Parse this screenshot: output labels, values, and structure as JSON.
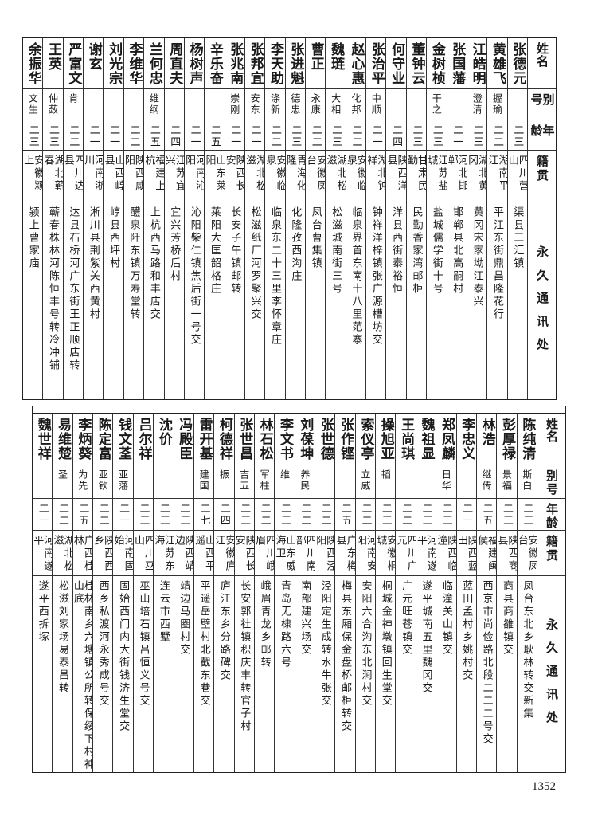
{
  "header": {
    "name": "姓名",
    "alias": "别号",
    "age": "年龄",
    "origin": "籍贯",
    "address": "永久通讯处"
  },
  "top_table": [
    {
      "name": "张德元",
      "alias": "",
      "age": "二三",
      "origin": "四川营山",
      "address": "渠县三汇镇"
    },
    {
      "name": "黄雄飞",
      "alias": "握瑜",
      "age": "二二",
      "origin": "湖南平江",
      "address": "平江东街鼎昌隆花行"
    },
    {
      "name": "江皓明",
      "alias": "澄清",
      "age": "二三",
      "origin": "湖北黄冈",
      "address": "黄冈宋家坳江泰兴"
    },
    {
      "name": "张国藩",
      "alias": "",
      "age": "二一",
      "origin": "河北邯郸",
      "address": "邯郸县北高嗣村"
    },
    {
      "name": "金树桢",
      "alias": "干之",
      "age": "二三",
      "origin": "江苏盐城",
      "address": "盐城儒学街十号"
    },
    {
      "name": "董钟云",
      "alias": "",
      "age": "二三",
      "origin": "甘肃民勤",
      "address": "民勤香家湾邮柜"
    },
    {
      "name": "何守业",
      "alias": "",
      "age": "二四",
      "origin": "陕西洋县",
      "address": "洋县西街泰裕恒"
    },
    {
      "name": "张治平",
      "alias": "中顺",
      "age": "二一",
      "origin": "湖北钟祥",
      "address": "钟祥洋梓镇张广源槽坊交"
    },
    {
      "name": "赵心惠",
      "alias": "化邦",
      "age": "二二",
      "origin": "安徽临泉",
      "address": "临泉界首东南十八里范寨"
    },
    {
      "name": "魏琏",
      "alias": "大相",
      "age": "二三",
      "origin": "湖北松滋",
      "address": "松滋城南街三号"
    },
    {
      "name": "曹正",
      "alias": "永康",
      "age": "二二",
      "origin": "安徽凤台",
      "address": "凤台曹集镇"
    },
    {
      "name": "张进魁",
      "alias": "德忠",
      "age": "二三",
      "origin": "青海化隆",
      "address": "化隆孜西沟庄"
    },
    {
      "name": "李天助",
      "alias": "涤新",
      "age": "二二",
      "origin": "安徽临泉",
      "address": "临泉东二十三里李怀章庄"
    },
    {
      "name": "张邦宜",
      "alias": "安东",
      "age": "二一",
      "origin": "湖北松滋",
      "address": "松滋纸厂河罗聚兴交"
    },
    {
      "name": "张兆南",
      "alias": "崇刚",
      "age": "二一",
      "origin": "陕西长安",
      "address": "长安子午镇邮转"
    },
    {
      "name": "辛乐奋",
      "alias": "",
      "age": "二五",
      "origin": "山东莱阳",
      "address": "莱阳大匡韶格庄"
    },
    {
      "name": "杨树声",
      "alias": "",
      "age": "二一",
      "origin": "河南沁阳",
      "address": "沁阳柴仁镇焦后街一号交"
    },
    {
      "name": "周直夫",
      "alias": "",
      "age": "二四",
      "origin": "江苏宜兴",
      "address": "宜兴芳桥后村"
    },
    {
      "name": "兰何忠",
      "alias": "维纲",
      "age": "二五",
      "origin": "福建上杭",
      "address": "上杭西马路和丰店交"
    },
    {
      "name": "李维华",
      "alias": "",
      "age": "二二",
      "origin": "陕西咸阳",
      "address": "醴泉阡东镇万寿堂转"
    },
    {
      "name": "刘光宗",
      "alias": "",
      "age": "二一",
      "origin": "山西崞县",
      "address": "崞县西坪村"
    },
    {
      "name": "谢玄",
      "alias": "",
      "age": "二一",
      "origin": "河南淅川",
      "address": "淅川县荆紫关西黄村"
    },
    {
      "name": "严富文",
      "alias": "肯",
      "age": "二二",
      "origin": "四川达县",
      "address": "达县石桥河广东街王正顺店转"
    },
    {
      "name": "王英",
      "alias": "仲蔹",
      "age": "二三",
      "origin": "湖北蕲春",
      "address": "蕲春株林河陈恒丰号转冷冲铺"
    },
    {
      "name": "余振华",
      "alias": "文生",
      "age": "二三",
      "origin": "安徽颍上",
      "address": "颍上曹家庙"
    }
  ],
  "bottom_table": [
    {
      "name": "陈纯清",
      "alias": "斯白",
      "age": "二三",
      "origin": "安徽凤台",
      "address": "凤台东北乡耿林转交新集"
    },
    {
      "name": "彭厚禄",
      "alias": "景福",
      "age": "二三",
      "origin": "陕西商县",
      "address": "商县商雒镇交"
    },
    {
      "name": "林浩",
      "alias": "继传",
      "age": "二五",
      "origin": "福建闽侯",
      "address": "西京市尚俭路北段二二二号交"
    },
    {
      "name": "李忠义",
      "alias": "",
      "age": "二一",
      "origin": "陕西蓝田",
      "address": "蓝田孟村乡姚村交"
    },
    {
      "name": "郑凤麟",
      "alias": "日华",
      "age": "二三",
      "origin": "陕西临潼",
      "address": "临潼关山镇交"
    },
    {
      "name": "魏祖显",
      "alias": "",
      "age": "二三",
      "origin": "河南遂平",
      "address": "遂平城南五里魏冈交"
    },
    {
      "name": "王尚琪",
      "alias": "",
      "age": "二二",
      "origin": "四川广元",
      "address": "广元旺苍镇交"
    },
    {
      "name": "操旭亚",
      "alias": "韬",
      "age": "二三",
      "origin": "安徽桐城",
      "address": "桐城金神墩镇回生堂交"
    },
    {
      "name": "索仪亭",
      "alias": "立威",
      "age": "二二",
      "origin": "河南安阳",
      "address": "安阳六合沟东北涧村交"
    },
    {
      "name": "张作铿",
      "alias": "",
      "age": "二五",
      "origin": "广东梅县",
      "address": "梅县东厢保金盘桥邮柜转交"
    },
    {
      "name": "张世德",
      "alias": "",
      "age": "二二",
      "origin": "陕西泾阳",
      "address": "泾阳定生成转水牛张交"
    },
    {
      "name": "刘葆坤",
      "alias": "养民",
      "age": "二二",
      "origin": "四川南部",
      "address": "南部建兴场交"
    },
    {
      "name": "李文书",
      "alias": "维",
      "age": "二三",
      "origin": "山东威海卫",
      "address": "青岛无棣路六号"
    },
    {
      "name": "林石松",
      "alias": "军柱",
      "age": "二二",
      "origin": "四川峨眉",
      "address": "峨眉青龙乡邮转"
    },
    {
      "name": "张世昌",
      "alias": "吉五",
      "age": "二三",
      "origin": "陕西长安",
      "address": "长安郭社镇积庆丰转官子村"
    },
    {
      "name": "柯德祥",
      "alias": "振",
      "age": "二四",
      "origin": "安徽庐江",
      "address": "庐江东乡分路碑交"
    },
    {
      "name": "雷开基",
      "alias": "建国",
      "age": "二七",
      "origin": "山西平遥",
      "address": "平遥岳壁村北截东巷交"
    },
    {
      "name": "冯殿臣",
      "alias": "",
      "age": "二三",
      "origin": "陕西靖边",
      "address": "靖边马圈村交"
    },
    {
      "name": "沈价",
      "alias": "",
      "age": "二三",
      "origin": "江苏东海",
      "address": "连云市西墅"
    },
    {
      "name": "吕尔祥",
      "alias": "",
      "age": "二三",
      "origin": "四川巫山",
      "address": "巫山培石镇吕恒义号交"
    },
    {
      "name": "钱文荃",
      "alias": "亚藩",
      "age": "二一",
      "origin": "河南固始",
      "address": "固始西门内大街钱济生堂交"
    },
    {
      "name": "陈定富",
      "alias": "亚钦",
      "age": "二二",
      "origin": "陕西西乡",
      "address": "西乡私渡河永秀成号交"
    },
    {
      "name": "李炳葵",
      "alias": "为先",
      "age": "二五",
      "origin": "广西桂林",
      "address": "桂林南乡六塘镇公所转保绥下村神山底"
    },
    {
      "name": "易维楚",
      "alias": "圣",
      "age": "二二",
      "origin": "湖北松滋",
      "address": "松滋刘家场易泰昌转"
    },
    {
      "name": "魏世祥",
      "alias": "",
      "age": "二一",
      "origin": "河南遂平",
      "address": "遂平西拆塚"
    }
  ],
  "page_number": "1352"
}
